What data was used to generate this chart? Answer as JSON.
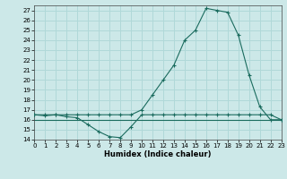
{
  "xlabel": "Humidex (Indice chaleur)",
  "xlim": [
    0,
    23
  ],
  "ylim": [
    14,
    27.5
  ],
  "yticks": [
    14,
    15,
    16,
    17,
    18,
    19,
    20,
    21,
    22,
    23,
    24,
    25,
    26,
    27
  ],
  "xticks": [
    0,
    1,
    2,
    3,
    4,
    5,
    6,
    7,
    8,
    9,
    10,
    11,
    12,
    13,
    14,
    15,
    16,
    17,
    18,
    19,
    20,
    21,
    22,
    23
  ],
  "bg_color": "#cce8e8",
  "line_color": "#1a6b5e",
  "grid_color": "#b0d8d8",
  "series_rise": {
    "x": [
      0,
      1,
      2,
      3,
      4,
      5,
      6,
      7,
      8,
      9,
      10,
      11,
      12,
      13,
      14,
      15,
      16,
      17,
      18,
      19,
      20,
      21,
      22,
      23
    ],
    "y": [
      16.5,
      16.5,
      16.5,
      16.5,
      16.5,
      16.5,
      16.5,
      16.5,
      16.5,
      16.5,
      17.0,
      18.5,
      20.0,
      21.5,
      24.0,
      25.0,
      27.2,
      27.0,
      26.8,
      24.5,
      20.5,
      17.3,
      16.0,
      16.0
    ]
  },
  "series_dip": {
    "x": [
      0,
      1,
      2,
      3,
      4,
      5,
      6,
      7,
      8,
      9,
      10,
      11,
      12,
      13,
      14,
      15,
      16,
      17,
      18,
      19,
      20,
      21,
      22,
      23
    ],
    "y": [
      16.5,
      16.4,
      16.5,
      16.3,
      16.2,
      15.5,
      14.8,
      14.3,
      14.2,
      15.3,
      16.5,
      16.5,
      16.5,
      16.5,
      16.5,
      16.5,
      16.5,
      16.5,
      16.5,
      16.5,
      16.5,
      16.5,
      16.5,
      16.0
    ]
  },
  "series_flat": {
    "x": [
      0,
      23
    ],
    "y": [
      16.0,
      16.0
    ]
  }
}
